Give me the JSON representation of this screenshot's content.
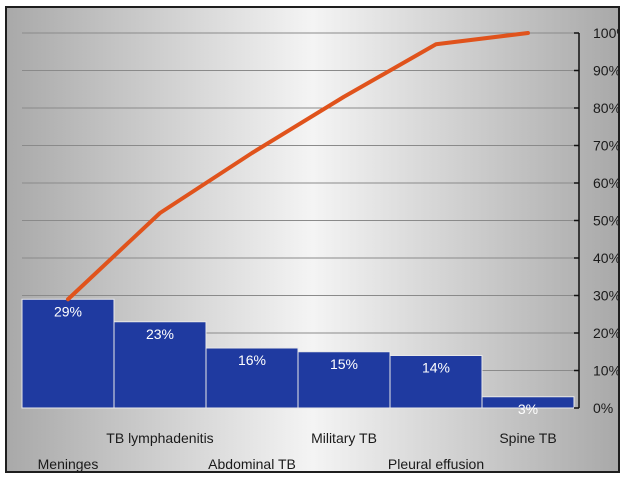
{
  "chart_data": {
    "type": "bar",
    "subtype": "pareto",
    "categories": [
      "Meninges",
      "TB lymphadenitis",
      "Abdominal TB",
      "Military TB",
      "Pleural effusion",
      "Spine TB"
    ],
    "series": [
      {
        "kind": "bar",
        "values": [
          29,
          23,
          16,
          15,
          14,
          3
        ],
        "data_labels": [
          "29%",
          "23%",
          "16%",
          "15%",
          "14%",
          "3%"
        ],
        "color": "#1f3aa0"
      },
      {
        "kind": "line",
        "values": [
          29,
          52,
          68,
          83,
          97,
          100
        ],
        "color": "#e0531c"
      }
    ],
    "y2_axis": {
      "position": "right",
      "ylim": [
        0,
        100
      ],
      "ticks": [
        "0%",
        "10%",
        "20%",
        "30%",
        "40%",
        "50%",
        "60%",
        "70%",
        "80%",
        "90%",
        "100%"
      ]
    },
    "grid": true,
    "legend": "none",
    "background": "gradient-grey"
  }
}
